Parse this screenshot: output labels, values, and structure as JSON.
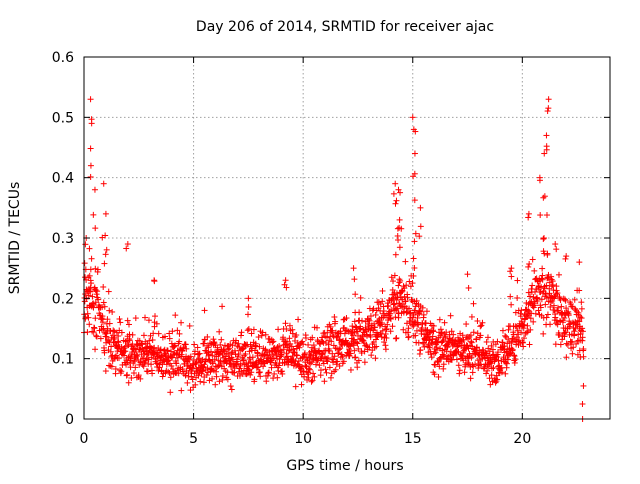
{
  "chart_data": {
    "type": "scatter",
    "title": "Day 206 of 2014, SRMTID for receiver ajac",
    "xlabel": "GPS time / hours",
    "ylabel": "SRMTID / TECUs",
    "xlim": [
      0,
      24
    ],
    "ylim": [
      0,
      0.6
    ],
    "xticks": [
      "0",
      "5",
      "10",
      "15",
      "20"
    ],
    "yticks": [
      "0",
      "0.1",
      "0.2",
      "0.3",
      "0.4",
      "0.5",
      "0.6"
    ],
    "grid": true,
    "marker": "+",
    "marker_color": "#ff0000",
    "grid_color": "#a0a0a0",
    "series": [
      {
        "name": "SRMTID",
        "baseline": [
          [
            0.0,
            0.17
          ],
          [
            0.3,
            0.2
          ],
          [
            0.6,
            0.18
          ],
          [
            1.0,
            0.14
          ],
          [
            1.5,
            0.12
          ],
          [
            2.0,
            0.11
          ],
          [
            3.0,
            0.11
          ],
          [
            4.0,
            0.1
          ],
          [
            5.0,
            0.09
          ],
          [
            6.0,
            0.1
          ],
          [
            7.0,
            0.1
          ],
          [
            8.0,
            0.1
          ],
          [
            9.0,
            0.11
          ],
          [
            10.0,
            0.1
          ],
          [
            11.0,
            0.11
          ],
          [
            12.0,
            0.13
          ],
          [
            13.0,
            0.15
          ],
          [
            13.8,
            0.16
          ],
          [
            14.2,
            0.2
          ],
          [
            14.8,
            0.17
          ],
          [
            15.2,
            0.16
          ],
          [
            16.0,
            0.12
          ],
          [
            17.0,
            0.11
          ],
          [
            18.0,
            0.11
          ],
          [
            18.6,
            0.09
          ],
          [
            19.0,
            0.1
          ],
          [
            19.5,
            0.12
          ],
          [
            20.0,
            0.15
          ],
          [
            20.5,
            0.2
          ],
          [
            21.0,
            0.22
          ],
          [
            21.5,
            0.18
          ],
          [
            22.0,
            0.15
          ],
          [
            22.5,
            0.15
          ],
          [
            22.8,
            0.13
          ]
        ],
        "spikes": [
          [
            0.1,
            0.3
          ],
          [
            0.3,
            0.53
          ],
          [
            0.35,
            0.49
          ],
          [
            0.5,
            0.38
          ],
          [
            0.9,
            0.39
          ],
          [
            1.0,
            0.34
          ],
          [
            2.0,
            0.29
          ],
          [
            3.2,
            0.23
          ],
          [
            5.5,
            0.18
          ],
          [
            7.5,
            0.2
          ],
          [
            9.2,
            0.23
          ],
          [
            12.3,
            0.25
          ],
          [
            14.2,
            0.39
          ],
          [
            14.35,
            0.38
          ],
          [
            14.4,
            0.33
          ],
          [
            15.0,
            0.5
          ],
          [
            15.05,
            0.48
          ],
          [
            15.1,
            0.44
          ],
          [
            15.35,
            0.35
          ],
          [
            17.5,
            0.24
          ],
          [
            19.5,
            0.25
          ],
          [
            20.3,
            0.34
          ],
          [
            20.8,
            0.4
          ],
          [
            21.0,
            0.44
          ],
          [
            21.1,
            0.47
          ],
          [
            21.2,
            0.53
          ],
          [
            21.5,
            0.29
          ],
          [
            22.0,
            0.27
          ],
          [
            22.6,
            0.26
          ],
          [
            22.75,
            0.0
          ]
        ]
      }
    ]
  }
}
